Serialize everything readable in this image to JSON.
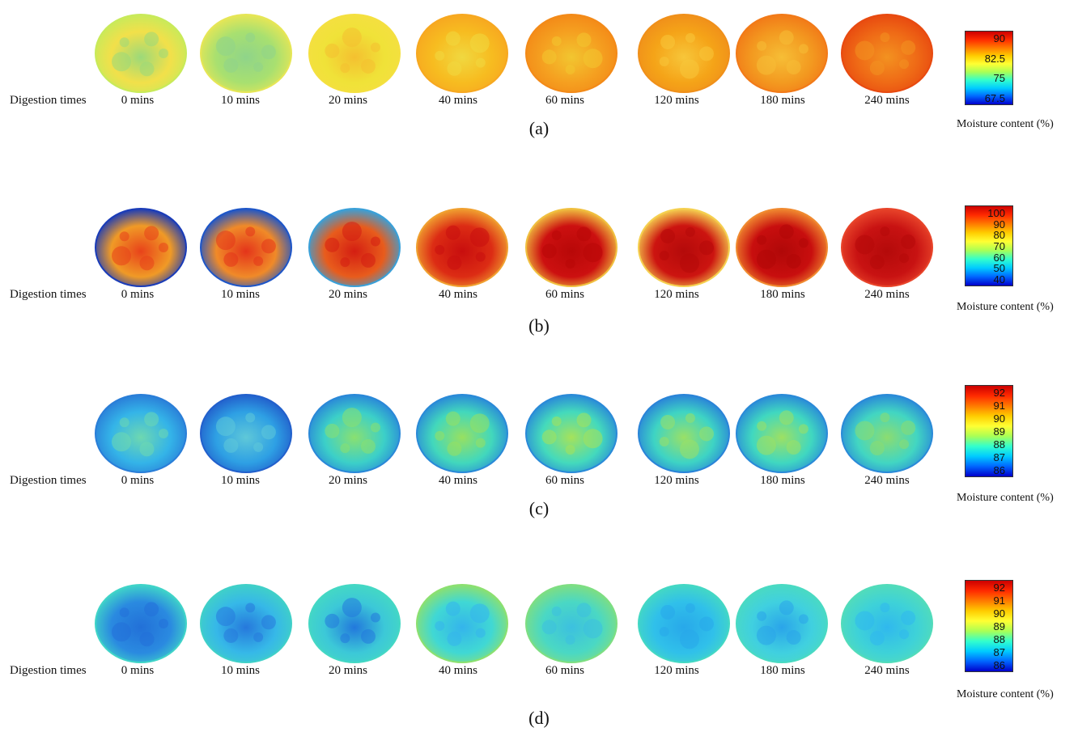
{
  "row_label": "Digestion times",
  "time_labels": [
    "0 mins",
    "10 mins",
    "20 mins",
    "40 mins",
    "60 mins",
    "120 mins",
    "180 mins",
    "240 mins"
  ],
  "colorbar_title": "Moisture content (%)",
  "panels": [
    {
      "letter": "(a)",
      "ticks": [
        "90",
        "82.5",
        "75",
        "67.5"
      ],
      "bar_colors": [
        "#cc0000",
        "#ff2a00",
        "#ff7a00",
        "#ffcc00",
        "#ffff33",
        "#aaff55",
        "#33ffcc",
        "#00ccff",
        "#0066ff",
        "#0000cc"
      ],
      "samples": [
        {
          "base": "#f2e04a",
          "spot": "#9bd97a",
          "rim": "#c8ea5a"
        },
        {
          "base": "#a8e070",
          "spot": "#8fd48a",
          "rim": "#e6e656"
        },
        {
          "base": "#f0e238",
          "spot": "#f4c030",
          "rim": "#f4e040"
        },
        {
          "base": "#f7bc20",
          "spot": "#f0d840",
          "rim": "#f7a820"
        },
        {
          "base": "#f5a020",
          "spot": "#f2c630",
          "rim": "#f38a18"
        },
        {
          "base": "#f5a418",
          "spot": "#f7c63a",
          "rim": "#f0901a"
        },
        {
          "base": "#f39a20",
          "spot": "#f6be36",
          "rim": "#f27a18"
        },
        {
          "base": "#ef6a16",
          "spot": "#f39220",
          "rim": "#e84a10"
        }
      ]
    },
    {
      "letter": "(b)",
      "ticks": [
        "100",
        "90",
        "80",
        "70",
        "60",
        "50",
        "40"
      ],
      "bar_colors": [
        "#cc0000",
        "#ff2a00",
        "#ff7a00",
        "#ffcc00",
        "#ffff33",
        "#aaff55",
        "#33ffcc",
        "#00ccff",
        "#0066ff",
        "#0000cc"
      ],
      "samples": [
        {
          "base": "#f09a26",
          "spot": "#e8421a",
          "rim": "#1a3cb8"
        },
        {
          "base": "#f08a28",
          "spot": "#e4341a",
          "rim": "#1e56c8"
        },
        {
          "base": "#e85c1c",
          "spot": "#d41e12",
          "rim": "#3aa0d8"
        },
        {
          "base": "#dc2c14",
          "spot": "#c80e0e",
          "rim": "#f0a030"
        },
        {
          "base": "#cc1010",
          "spot": "#b80808",
          "rim": "#f0c040"
        },
        {
          "base": "#cc1410",
          "spot": "#b40a0a",
          "rim": "#f5d050"
        },
        {
          "base": "#c80e0e",
          "spot": "#b00808",
          "rim": "#f08a30"
        },
        {
          "base": "#c81212",
          "spot": "#b40a0a",
          "rim": "#e8442a"
        }
      ]
    },
    {
      "letter": "(c)",
      "ticks": [
        "92",
        "91",
        "90",
        "89",
        "88",
        "87",
        "86"
      ],
      "bar_colors": [
        "#cc0000",
        "#ff2a00",
        "#ff7a00",
        "#ffcc00",
        "#ffff33",
        "#aaff55",
        "#33ffcc",
        "#00ccff",
        "#0066ff",
        "#0000cc"
      ],
      "samples": [
        {
          "base": "#34b4e8",
          "spot": "#6ed8b0",
          "rim": "#2a7ed8"
        },
        {
          "base": "#2ea0e4",
          "spot": "#5fc8d8",
          "rim": "#2260cc"
        },
        {
          "base": "#3cd0c8",
          "spot": "#8ae070",
          "rim": "#2a88d8"
        },
        {
          "base": "#42d8bc",
          "spot": "#98e060",
          "rim": "#2a8ad8"
        },
        {
          "base": "#44dabc",
          "spot": "#a6e25a",
          "rim": "#2a8ad8"
        },
        {
          "base": "#3ed4c4",
          "spot": "#9ae066",
          "rim": "#2a84d8"
        },
        {
          "base": "#40d8c0",
          "spot": "#9ee062",
          "rim": "#2a8ad8"
        },
        {
          "base": "#42d6c2",
          "spot": "#8cdc70",
          "rim": "#2a8ad8"
        }
      ]
    },
    {
      "letter": "(d)",
      "ticks": [
        "92",
        "91",
        "90",
        "89",
        "88",
        "87",
        "86"
      ],
      "bar_colors": [
        "#cc0000",
        "#ff2a00",
        "#ff7a00",
        "#ffcc00",
        "#ffff33",
        "#aaff55",
        "#33ffcc",
        "#00ccff",
        "#0066ff",
        "#0000cc"
      ],
      "samples": [
        {
          "base": "#2a8ae0",
          "spot": "#2270d8",
          "rim": "#40d4c8"
        },
        {
          "base": "#36b8e8",
          "spot": "#2678dc",
          "rim": "#40d0c8"
        },
        {
          "base": "#3cc8d8",
          "spot": "#2278dc",
          "rim": "#44d8c4"
        },
        {
          "base": "#40d8d4",
          "spot": "#34b4ec",
          "rim": "#8ce070"
        },
        {
          "base": "#4ad8c4",
          "spot": "#3cc0e0",
          "rim": "#7ede82"
        },
        {
          "base": "#30c0ea",
          "spot": "#28a8ea",
          "rim": "#44d8c4"
        },
        {
          "base": "#40d0e0",
          "spot": "#2aa4ea",
          "rim": "#4adac2"
        },
        {
          "base": "#3ed2d8",
          "spot": "#30b8ee",
          "rim": "#52dcba"
        }
      ]
    }
  ]
}
